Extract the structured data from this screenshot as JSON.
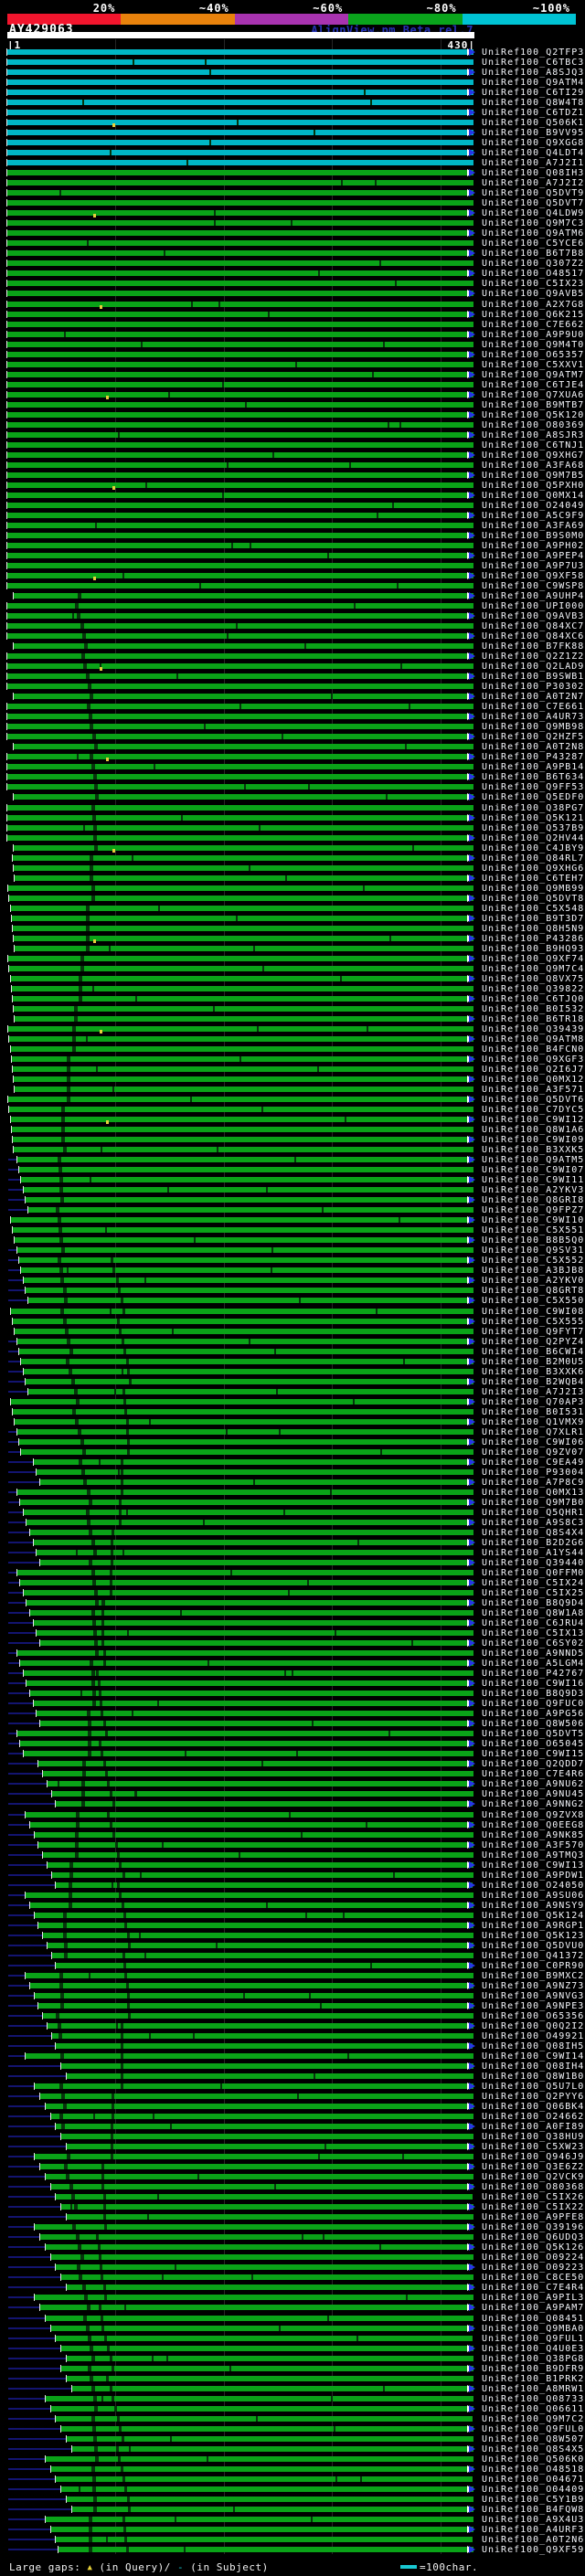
{
  "header": {
    "title": "AY429063",
    "watermark": "AlignView.pm Beta rel.7",
    "ruler_start": "|1",
    "ruler_end": "430|"
  },
  "footer": {
    "large_gaps_label": "Large gaps:",
    "query_gap_marker": "▲",
    "query_gap_label": "(in Query)/",
    "subject_gap_marker": "-",
    "subject_gap_label": "(in Subject)",
    "scalebar_label": "=100char."
  },
  "colors": {
    "background": "#000000",
    "bar_green": "#0aa318",
    "bar_cyan": "#00b7c6",
    "gap_tick_dark": "#05350b",
    "lead_navy": "#131470",
    "arrow_blue": "#2636e8",
    "grid": "#262626",
    "watermark_blue": "#2633b8",
    "gap_triangle_yellow": "#e6cf3a",
    "legend_dash_cyan": "#19c8d2",
    "label_text": "#f3f5fa"
  },
  "chart_data": {
    "type": "bar",
    "title": "AY429063",
    "orientation": "horizontal",
    "x_axis": {
      "min": 1,
      "max": 430,
      "gridlines": [
        100,
        200,
        300,
        400
      ],
      "units": "char"
    },
    "identity_scale": {
      "labels": [
        "20%",
        "~40%",
        "~60%",
        "~80%",
        "~100%"
      ],
      "colors": [
        "#f2152d",
        "#e8820c",
        "#a833b0",
        "#0aa41c",
        "#00c3d4"
      ]
    },
    "hit_prefix": "UniRef100_",
    "hit_end": 430,
    "high_identity_rows": 12,
    "hits": [
      [
        "Q2TFP3",
        1
      ],
      [
        "C6TBC3",
        1
      ],
      [
        "A8SJQ3",
        1
      ],
      [
        "Q9ATM4",
        1
      ],
      [
        "C6TI29",
        1
      ],
      [
        "Q8W4T8",
        1
      ],
      [
        "C6TDZ1",
        1
      ],
      [
        "Q506K1",
        1
      ],
      [
        "B9VV95",
        1
      ],
      [
        "Q9XGG8",
        1
      ],
      [
        "Q4LDT4",
        1
      ],
      [
        "A7J2I1",
        1
      ],
      [
        "Q08IH3",
        1
      ],
      [
        "A7J2I2",
        1
      ],
      [
        "Q5DVT9",
        1
      ],
      [
        "Q5DVT7",
        1
      ],
      [
        "Q4LDW9",
        1
      ],
      [
        "Q9M7C3",
        1
      ],
      [
        "Q9ATM6",
        1
      ],
      [
        "C5YCE6",
        1
      ],
      [
        "B6T7B8",
        1
      ],
      [
        "Q307Z2",
        1
      ],
      [
        "O48517",
        1
      ],
      [
        "C5IX23",
        1
      ],
      [
        "Q9AVB5",
        1
      ],
      [
        "A2X7G8",
        1
      ],
      [
        "Q6K215",
        1
      ],
      [
        "C7E662",
        1
      ],
      [
        "A9P9U0",
        1
      ],
      [
        "Q9M4T0",
        1
      ],
      [
        "O65357",
        1
      ],
      [
        "C5XXV1",
        1
      ],
      [
        "Q9ATM7",
        1
      ],
      [
        "C6TJE4",
        1
      ],
      [
        "Q7XUA6",
        1
      ],
      [
        "B9MTB7",
        1
      ],
      [
        "Q5K120",
        1
      ],
      [
        "O80369",
        1
      ],
      [
        "A8SJR3",
        1
      ],
      [
        "C6TNJ1",
        1
      ],
      [
        "Q9XHG7",
        1
      ],
      [
        "A3FA68",
        1
      ],
      [
        "Q9M7B5",
        1
      ],
      [
        "Q5PXH0",
        1
      ],
      [
        "Q0MX14",
        1
      ],
      [
        "O24049",
        1
      ],
      [
        "A5C9F9",
        1
      ],
      [
        "A3FA69",
        1
      ],
      [
        "B9S0M0",
        1
      ],
      [
        "A9PH02",
        1
      ],
      [
        "A9PEP4",
        1
      ],
      [
        "A9P7U3",
        1
      ],
      [
        "Q9XF58",
        1
      ],
      [
        "C9WSP8",
        1
      ],
      [
        "A9UHP4",
        7
      ],
      [
        "UPI000..",
        1
      ],
      [
        "Q9AVB3",
        1
      ],
      [
        "Q84XC7",
        1
      ],
      [
        "Q84XC6",
        1
      ],
      [
        "B7FK88",
        7
      ],
      [
        "Q2Z1Z2",
        1
      ],
      [
        "Q2LAD9",
        1
      ],
      [
        "B9SWB1",
        1
      ],
      [
        "P30302",
        1
      ],
      [
        "A0T2N7",
        7
      ],
      [
        "C7E661",
        1
      ],
      [
        "A4UR73",
        1
      ],
      [
        "Q9MB98",
        1
      ],
      [
        "Q2HZF5",
        1
      ],
      [
        "A0T2N8",
        7
      ],
      [
        "P43287",
        1
      ],
      [
        "A9PB14",
        1
      ],
      [
        "B6T634",
        1
      ],
      [
        "Q9FF53",
        1
      ],
      [
        "Q5EDF0",
        7
      ],
      [
        "Q38PG7",
        1
      ],
      [
        "Q5K121",
        1
      ],
      [
        "Q537B9",
        1
      ],
      [
        "Q2HV44",
        1
      ],
      [
        "C4JBY9",
        7
      ],
      [
        "Q84RL7",
        6
      ],
      [
        "Q9XHG6",
        7
      ],
      [
        "C6TEH7",
        8
      ],
      [
        "Q9MB99",
        2
      ],
      [
        "Q5DVT8",
        3
      ],
      [
        "C5X548",
        4
      ],
      [
        "B9T3D7",
        5
      ],
      [
        "Q8H5N9",
        6
      ],
      [
        "P43286",
        7
      ],
      [
        "B9HQ93",
        8
      ],
      [
        "Q9XF74",
        2
      ],
      [
        "Q9M7C4",
        3
      ],
      [
        "Q8VX75",
        4
      ],
      [
        "Q39822",
        5
      ],
      [
        "C6TJQ0",
        6
      ],
      [
        "B0I532",
        7
      ],
      [
        "B6TR18",
        8
      ],
      [
        "Q39439",
        2
      ],
      [
        "Q9ATM8",
        3
      ],
      [
        "B4FCN0",
        4
      ],
      [
        "Q9XGF3",
        5
      ],
      [
        "Q2I6J7",
        6
      ],
      [
        "Q0MX12",
        7
      ],
      [
        "A3F571",
        8
      ],
      [
        "Q5DVT6",
        2
      ],
      [
        "C7DYC5",
        3
      ],
      [
        "C9WI12",
        4
      ],
      [
        "Q8W1A6",
        5
      ],
      [
        "C9WI09",
        6
      ],
      [
        "B3XXK5",
        7
      ],
      [
        "Q9ATM5",
        10
      ],
      [
        "C9WI07",
        12
      ],
      [
        "C9WI11",
        14
      ],
      [
        "A2YKV3",
        16
      ],
      [
        "Q8GRI8",
        18
      ],
      [
        "Q9FPZ7",
        20
      ],
      [
        "C9WI10",
        4
      ],
      [
        "C5X551",
        6
      ],
      [
        "B8B5Q0",
        8
      ],
      [
        "Q9SV31",
        10
      ],
      [
        "C5X552",
        12
      ],
      [
        "A3BJB8",
        14
      ],
      [
        "A2YKV0",
        16
      ],
      [
        "Q8GRT8",
        18
      ],
      [
        "C5X550",
        20
      ],
      [
        "C9WI08",
        4
      ],
      [
        "C5X555",
        6
      ],
      [
        "Q9FYT7",
        8
      ],
      [
        "Q2PYZ4",
        10
      ],
      [
        "B6CWI4",
        12
      ],
      [
        "B2M0U5",
        14
      ],
      [
        "B3XXK6",
        16
      ],
      [
        "B2WQB4",
        18
      ],
      [
        "A7J2I3",
        20
      ],
      [
        "Q70AP3",
        4
      ],
      [
        "B0I531",
        6
      ],
      [
        "Q1VMX9",
        8
      ],
      [
        "Q7XLR1",
        10
      ],
      [
        "C9WI06",
        12
      ],
      [
        "Q9ZV07",
        14
      ],
      [
        "C9EA49",
        25
      ],
      [
        "P93004",
        28
      ],
      [
        "A7P8C9",
        31
      ],
      [
        "Q0MX13",
        10
      ],
      [
        "Q9M7B0",
        13
      ],
      [
        "Q5QHR1",
        16
      ],
      [
        "A9S8C3",
        19
      ],
      [
        "Q8S4X4",
        22
      ],
      [
        "B2D2G6",
        25
      ],
      [
        "A1YS44",
        28
      ],
      [
        "Q39440",
        31
      ],
      [
        "Q0FFM0",
        10
      ],
      [
        "C5IX24",
        13
      ],
      [
        "C5IX25",
        16
      ],
      [
        "B8Q9D4",
        19
      ],
      [
        "Q8W1A8",
        22
      ],
      [
        "C6JRU4",
        25
      ],
      [
        "C5IX13",
        28
      ],
      [
        "C6SY02",
        31
      ],
      [
        "A9NND5",
        10
      ],
      [
        "A5LGM4",
        13
      ],
      [
        "P42767",
        16
      ],
      [
        "C9WI16",
        19
      ],
      [
        "B8Q9D3",
        22
      ],
      [
        "Q9FUC0",
        25
      ],
      [
        "A9PG56",
        28
      ],
      [
        "Q8W506",
        31
      ],
      [
        "Q5DVT5",
        10
      ],
      [
        "O65045",
        13
      ],
      [
        "C9WI15",
        16
      ],
      [
        "Q2QDD7",
        30
      ],
      [
        "C7E4R6",
        34
      ],
      [
        "A9NU62",
        38
      ],
      [
        "A9NU45",
        42
      ],
      [
        "A9NNG2",
        46
      ],
      [
        "Q9ZVX8",
        18
      ],
      [
        "Q0EEG8",
        22
      ],
      [
        "A9NK85",
        26
      ],
      [
        "A3F570",
        30
      ],
      [
        "A9TMQ3",
        34
      ],
      [
        "C9WI13",
        38
      ],
      [
        "A9PDW1",
        42
      ],
      [
        "O24050",
        46
      ],
      [
        "A9SU06",
        18
      ],
      [
        "A9NSY9",
        22
      ],
      [
        "Q5K124",
        26
      ],
      [
        "A9RGP1",
        30
      ],
      [
        "Q5K123",
        34
      ],
      [
        "Q5DVU0",
        38
      ],
      [
        "Q41372",
        42
      ],
      [
        "C0PR90",
        46
      ],
      [
        "B9MXC2",
        18
      ],
      [
        "A9NZ73",
        22
      ],
      [
        "A9NVG3",
        26
      ],
      [
        "A9NPE3",
        30
      ],
      [
        "O65356",
        34
      ],
      [
        "Q0Q2I2",
        38
      ],
      [
        "O49921",
        42
      ],
      [
        "Q08IH5",
        46
      ],
      [
        "C9WI14",
        18
      ],
      [
        "Q08IH4",
        51
      ],
      [
        "Q8W1B0",
        56
      ],
      [
        "Q5U7L0",
        26
      ],
      [
        "Q2PYY6",
        31
      ],
      [
        "Q06BK4",
        36
      ],
      [
        "O24662",
        41
      ],
      [
        "A0FI89",
        46
      ],
      [
        "Q38HU9",
        51
      ],
      [
        "C5XW23",
        56
      ],
      [
        "Q946J9",
        26
      ],
      [
        "Q3E6Z2",
        31
      ],
      [
        "Q2VCK9",
        36
      ],
      [
        "O80368",
        41
      ],
      [
        "C5IX26",
        46
      ],
      [
        "C5IX22",
        51
      ],
      [
        "A9PFE8",
        56
      ],
      [
        "Q39196",
        26
      ],
      [
        "Q6UDQ3",
        31
      ],
      [
        "Q5K126",
        36
      ],
      [
        "O09224",
        41
      ],
      [
        "O09223",
        46
      ],
      [
        "C8CE50",
        51
      ],
      [
        "C7E4R4",
        56
      ],
      [
        "A9PIL3",
        26
      ],
      [
        "A9PAM7",
        31
      ],
      [
        "Q08451",
        36
      ],
      [
        "Q9MBA0",
        41
      ],
      [
        "Q9FUL1",
        46
      ],
      [
        "Q4U0E3",
        51
      ],
      [
        "Q38PG8",
        56
      ],
      [
        "B9DFR9",
        51
      ],
      [
        "B1PRK2",
        56
      ],
      [
        "A8MRW1",
        61
      ],
      [
        "Q08733",
        36
      ],
      [
        "Q06611",
        41
      ],
      [
        "Q9M7C2",
        46
      ],
      [
        "Q9FUL0",
        51
      ],
      [
        "Q8W507",
        56
      ],
      [
        "Q8S4X5",
        61
      ],
      [
        "Q506K0",
        36
      ],
      [
        "O48518",
        41
      ],
      [
        "O04671",
        46
      ],
      [
        "O04409",
        51
      ],
      [
        "C5Y1B9",
        56
      ],
      [
        "B4FQW8",
        61
      ],
      [
        "A9X4U3",
        36
      ],
      [
        "A4URF3",
        41
      ],
      [
        "A0T2N6",
        46
      ],
      [
        "Q9XF59",
        48
      ]
    ]
  }
}
